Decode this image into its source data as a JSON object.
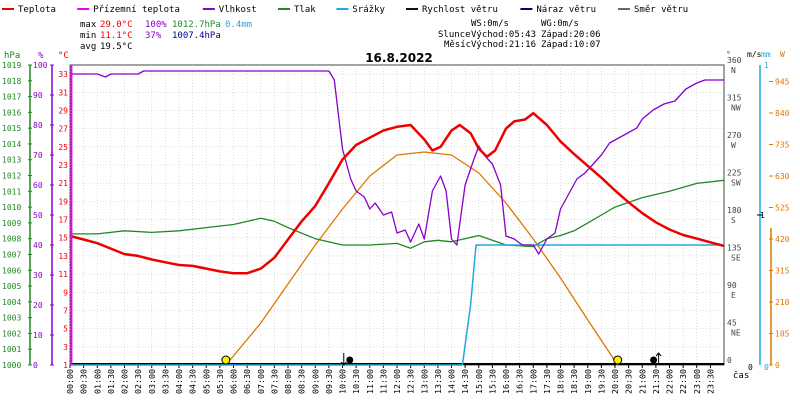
{
  "legend": [
    {
      "label": "Teplota",
      "color": "#ee0000"
    },
    {
      "label": "Přízemní teplota",
      "color": "#ee00ee"
    },
    {
      "label": "Vlhkost",
      "color": "#8800cc"
    },
    {
      "label": "Tlak",
      "color": "#228822"
    },
    {
      "label": "Srážky",
      "color": "#22aadd"
    },
    {
      "label": "Rychlost větru",
      "color": "#111111"
    },
    {
      "label": "Náraz větru",
      "color": "#000088"
    },
    {
      "label": "Směr větru",
      "color": "#666666"
    }
  ],
  "stats": {
    "max": {
      "label": "max",
      "temp": "29.0°C",
      "hum": "100%",
      "press": "1012.7hPa",
      "rain": "0.4mm"
    },
    "min": {
      "label": "min",
      "temp": "11.1°C",
      "hum": "37%",
      "press": "1007.4hPa"
    },
    "avg": {
      "label": "avg",
      "temp": "19.5°C"
    }
  },
  "wind_info": {
    "ws": "WS:0m/s",
    "wg": "WG:0m/s"
  },
  "sun_info": {
    "label": "Slunce",
    "rise": "Východ:05:43",
    "set": "Západ:20:06"
  },
  "moon_info": {
    "label": "Měsíc",
    "rise": "Východ:21:16",
    "set": "Západ:10:07"
  },
  "chart_data": {
    "type": "line",
    "title": "16.8.2022",
    "xlabel": "čas",
    "x_ticks": [
      "00:00",
      "00:30",
      "01:00",
      "01:30",
      "02:00",
      "02:30",
      "03:00",
      "03:30",
      "04:00",
      "04:30",
      "05:00",
      "05:30",
      "06:00",
      "06:30",
      "07:00",
      "07:30",
      "08:00",
      "08:30",
      "09:00",
      "09:30",
      "10:00",
      "10:30",
      "11:00",
      "11:30",
      "12:00",
      "12:30",
      "13:00",
      "13:30",
      "14:00",
      "14:30",
      "15:00",
      "15:30",
      "16:00",
      "16:30",
      "17:00",
      "17:30",
      "18:00",
      "18:30",
      "19:00",
      "19:30",
      "20:00",
      "20:30",
      "21:00",
      "21:30",
      "22:00",
      "22:30",
      "23:00",
      "23:30"
    ],
    "xlim": [
      0,
      24
    ],
    "axes": {
      "pressure": {
        "unit": "hPa",
        "range": [
          1000,
          1019
        ],
        "ticks": [
          "1000",
          "1001",
          "1002",
          "1003",
          "1004",
          "1005",
          "1006",
          "1007",
          "1008",
          "1009",
          "1010",
          "1011",
          "1012",
          "1013",
          "1014",
          "1015",
          "1016",
          "1017",
          "1018",
          "1019"
        ],
        "color": "#228822"
      },
      "humidity": {
        "unit": "%",
        "range": [
          0,
          100
        ],
        "ticks": [
          "0",
          "10",
          "20",
          "30",
          "40",
          "50",
          "60",
          "70",
          "80",
          "90",
          "100"
        ],
        "color": "#8800cc"
      },
      "temperature": {
        "unit": "°C",
        "range": [
          1,
          34
        ],
        "ticks": [
          "1",
          "3",
          "5",
          "7",
          "9",
          "11",
          "13",
          "15",
          "17",
          "19",
          "21",
          "23",
          "25",
          "27",
          "29",
          "31",
          "33"
        ],
        "color": "#ee0000"
      },
      "direction": {
        "unit": "°",
        "range": [
          0,
          360
        ],
        "ticks": [
          {
            "deg": "0",
            "dir": ""
          },
          {
            "deg": "45",
            "dir": "NE"
          },
          {
            "deg": "90",
            "dir": "E"
          },
          {
            "deg": "135",
            "dir": "SE"
          },
          {
            "deg": "180",
            "dir": "S"
          },
          {
            "deg": "225",
            "dir": "SW"
          },
          {
            "deg": "270",
            "dir": "W"
          },
          {
            "deg": "315",
            "dir": "NW"
          },
          {
            "deg": "360",
            "dir": "N"
          }
        ],
        "color": "#444444"
      },
      "wind": {
        "unit": "m/s",
        "range": [
          0,
          1
        ],
        "ticks": [
          "0",
          "1"
        ],
        "color": "#22aadd"
      },
      "rain": {
        "unit": "mm",
        "range": [
          0,
          1
        ],
        "ticks": [
          "0",
          "1"
        ],
        "color": "#22aadd"
      },
      "radiation": {
        "unit": "W",
        "range": [
          0,
          1000
        ],
        "ticks": [
          "0",
          "105",
          "210",
          "315",
          "420",
          "525",
          "630",
          "735",
          "840",
          "945"
        ],
        "color": "#dd7700"
      }
    },
    "series": [
      {
        "name": "Teplota",
        "axis": "temperature",
        "color": "#ee0000",
        "width": 2.5,
        "points": [
          [
            0,
            15.2
          ],
          [
            0.5,
            14.8
          ],
          [
            1,
            14.4
          ],
          [
            1.5,
            13.8
          ],
          [
            2,
            13.2
          ],
          [
            2.5,
            13
          ],
          [
            3,
            12.6
          ],
          [
            3.5,
            12.3
          ],
          [
            4,
            12
          ],
          [
            4.5,
            11.9
          ],
          [
            5,
            11.6
          ],
          [
            5.5,
            11.3
          ],
          [
            6,
            11.1
          ],
          [
            6.5,
            11.1
          ],
          [
            7,
            11.6
          ],
          [
            7.5,
            12.8
          ],
          [
            8,
            14.8
          ],
          [
            8.5,
            16.8
          ],
          [
            9,
            18.5
          ],
          [
            9.5,
            21
          ],
          [
            10,
            23.6
          ],
          [
            10.5,
            25.2
          ],
          [
            11,
            26
          ],
          [
            11.5,
            26.8
          ],
          [
            12,
            27.2
          ],
          [
            12.5,
            27.4
          ],
          [
            13,
            25.8
          ],
          [
            13.3,
            24.6
          ],
          [
            13.6,
            25
          ],
          [
            14,
            26.8
          ],
          [
            14.3,
            27.4
          ],
          [
            14.7,
            26.5
          ],
          [
            15,
            24.8
          ],
          [
            15.3,
            23.9
          ],
          [
            15.6,
            24.6
          ],
          [
            16,
            27
          ],
          [
            16.3,
            27.8
          ],
          [
            16.7,
            28
          ],
          [
            17,
            28.7
          ],
          [
            17.5,
            27.4
          ],
          [
            18,
            25.6
          ],
          [
            18.5,
            24.2
          ],
          [
            19,
            22.9
          ],
          [
            19.5,
            21.6
          ],
          [
            20,
            20.2
          ],
          [
            20.5,
            18.9
          ],
          [
            21,
            17.7
          ],
          [
            21.5,
            16.7
          ],
          [
            22,
            15.9
          ],
          [
            22.5,
            15.3
          ],
          [
            23,
            14.9
          ],
          [
            23.5,
            14.5
          ],
          [
            24,
            14.1
          ]
        ]
      },
      {
        "name": "Vlhkost",
        "axis": "humidity",
        "color": "#8800cc",
        "width": 1.3,
        "points": [
          [
            0,
            97
          ],
          [
            1,
            97
          ],
          [
            1.3,
            96
          ],
          [
            1.5,
            97
          ],
          [
            2.5,
            97
          ],
          [
            2.7,
            98
          ],
          [
            9.5,
            98
          ],
          [
            9.7,
            95
          ],
          [
            10,
            72
          ],
          [
            10.3,
            62
          ],
          [
            10.5,
            58
          ],
          [
            10.8,
            56
          ],
          [
            11,
            52
          ],
          [
            11.2,
            54
          ],
          [
            11.5,
            50
          ],
          [
            11.8,
            51
          ],
          [
            12,
            44
          ],
          [
            12.3,
            45
          ],
          [
            12.5,
            41
          ],
          [
            12.8,
            47
          ],
          [
            13,
            42
          ],
          [
            13.3,
            58
          ],
          [
            13.6,
            63
          ],
          [
            13.8,
            58
          ],
          [
            14,
            42
          ],
          [
            14.2,
            40
          ],
          [
            14.5,
            60
          ],
          [
            14.8,
            68
          ],
          [
            15,
            73
          ],
          [
            15.2,
            70
          ],
          [
            15.5,
            67
          ],
          [
            15.8,
            60
          ],
          [
            16,
            43
          ],
          [
            16.3,
            42
          ],
          [
            16.6,
            40
          ],
          [
            17,
            40
          ],
          [
            17.2,
            37
          ],
          [
            17.5,
            42
          ],
          [
            17.8,
            44
          ],
          [
            18,
            52
          ],
          [
            18.3,
            57
          ],
          [
            18.6,
            62
          ],
          [
            18.9,
            64
          ],
          [
            19.2,
            67
          ],
          [
            19.5,
            70
          ],
          [
            19.8,
            74
          ],
          [
            20,
            75
          ],
          [
            20.4,
            77
          ],
          [
            20.8,
            79
          ],
          [
            21,
            82
          ],
          [
            21.4,
            85
          ],
          [
            21.8,
            87
          ],
          [
            22.2,
            88
          ],
          [
            22.6,
            92
          ],
          [
            23,
            94
          ],
          [
            23.3,
            95
          ],
          [
            24,
            95
          ]
        ]
      },
      {
        "name": "Tlak",
        "axis": "pressure",
        "color": "#228822",
        "width": 1.3,
        "points": [
          [
            0,
            1008.3
          ],
          [
            1,
            1008.3
          ],
          [
            2,
            1008.5
          ],
          [
            3,
            1008.4
          ],
          [
            4,
            1008.5
          ],
          [
            5,
            1008.7
          ],
          [
            6,
            1008.9
          ],
          [
            7,
            1009.3
          ],
          [
            7.5,
            1009.1
          ],
          [
            8,
            1008.7
          ],
          [
            9,
            1008.0
          ],
          [
            10,
            1007.6
          ],
          [
            11,
            1007.6
          ],
          [
            12,
            1007.7
          ],
          [
            12.5,
            1007.4
          ],
          [
            13,
            1007.8
          ],
          [
            13.5,
            1007.9
          ],
          [
            14,
            1007.8
          ],
          [
            15,
            1008.2
          ],
          [
            15.5,
            1007.9
          ],
          [
            16,
            1007.6
          ],
          [
            17,
            1007.5
          ],
          [
            17.5,
            1008.0
          ],
          [
            18,
            1008.2
          ],
          [
            18.5,
            1008.5
          ],
          [
            19,
            1009.0
          ],
          [
            19.5,
            1009.5
          ],
          [
            20,
            1010.0
          ],
          [
            21,
            1010.6
          ],
          [
            22,
            1011.0
          ],
          [
            23,
            1011.5
          ],
          [
            24,
            1011.7
          ]
        ]
      },
      {
        "name": "Srážky",
        "axis": "rain",
        "color": "#22aadd",
        "width": 1.5,
        "points": [
          [
            0,
            0
          ],
          [
            14.4,
            0
          ],
          [
            14.7,
            0.2
          ],
          [
            14.9,
            0.4
          ],
          [
            15,
            0.4
          ],
          [
            24,
            0.4
          ]
        ]
      },
      {
        "name": "Radiation",
        "axis": "radiation",
        "color": "#dd7700",
        "width": 1.3,
        "points": [
          [
            5.72,
            0
          ],
          [
            7,
            140
          ],
          [
            8,
            270
          ],
          [
            9,
            400
          ],
          [
            10,
            520
          ],
          [
            11,
            630
          ],
          [
            12,
            700
          ],
          [
            13,
            710
          ],
          [
            14,
            700
          ],
          [
            15,
            640
          ],
          [
            16,
            540
          ],
          [
            17,
            420
          ],
          [
            18,
            290
          ],
          [
            19,
            150
          ],
          [
            20.1,
            0
          ]
        ]
      },
      {
        "name": "Přízemní teplota",
        "axis": "temperature",
        "color": "#ee00ee",
        "width": 2,
        "points": [
          [
            0.05,
            1
          ],
          [
            0.05,
            34
          ]
        ]
      }
    ],
    "markers": [
      {
        "type": "sunrise",
        "time": 5.72
      },
      {
        "type": "sunset",
        "time": 20.1
      },
      {
        "type": "moonset",
        "time": 10.12
      },
      {
        "type": "moonrise",
        "time": 21.27
      }
    ]
  }
}
